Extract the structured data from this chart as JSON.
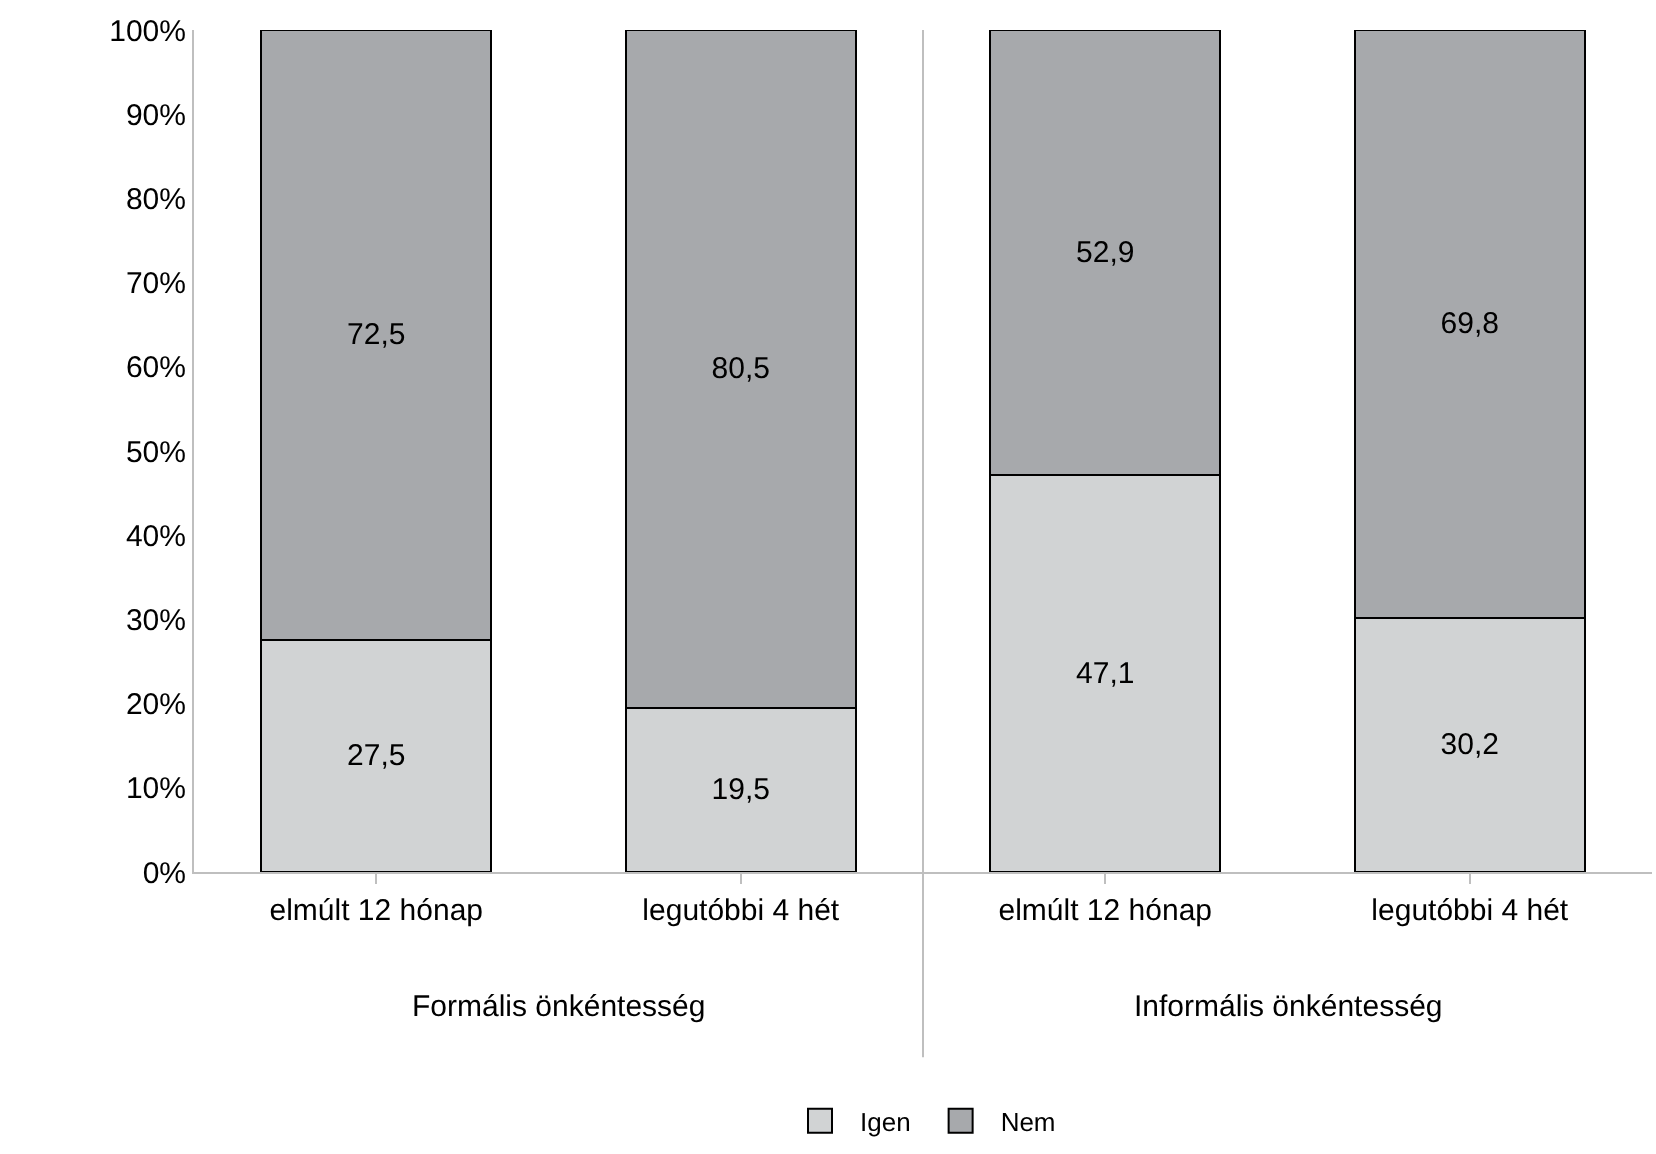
{
  "chart_data": {
    "type": "bar",
    "stacked": true,
    "categories": [
      "elmúlt 12 hónap",
      "legutóbbi 4 hét",
      "elmúlt 12 hónap",
      "legutóbbi 4 hét"
    ],
    "series": [
      {
        "name": "Igen",
        "color": "#d1d3d4",
        "values": [
          27.5,
          19.5,
          47.1,
          30.2
        ],
        "value_labels": [
          "27,5",
          "19,5",
          "47,1",
          "30,2"
        ]
      },
      {
        "name": "Nem",
        "color": "#a7a9ac",
        "values": [
          72.5,
          80.5,
          52.9,
          69.8
        ],
        "value_labels": [
          "72,5",
          "80,5",
          "52,9",
          "69,8"
        ]
      }
    ],
    "ylim": [
      0,
      100
    ],
    "yticks": [
      {
        "value": 0,
        "label": "0%"
      },
      {
        "value": 10,
        "label": "10%"
      },
      {
        "value": 20,
        "label": "20%"
      },
      {
        "value": 30,
        "label": "30%"
      },
      {
        "value": 40,
        "label": "40%"
      },
      {
        "value": 50,
        "label": "50%"
      },
      {
        "value": 60,
        "label": "60%"
      },
      {
        "value": 70,
        "label": "70%"
      },
      {
        "value": 80,
        "label": "80%"
      },
      {
        "value": 90,
        "label": "90%"
      },
      {
        "value": 100,
        "label": "100%"
      }
    ],
    "annotations": [
      "Formális önkéntesség",
      "Informális önkéntesség"
    ],
    "grid": false,
    "legend": "bottom"
  }
}
